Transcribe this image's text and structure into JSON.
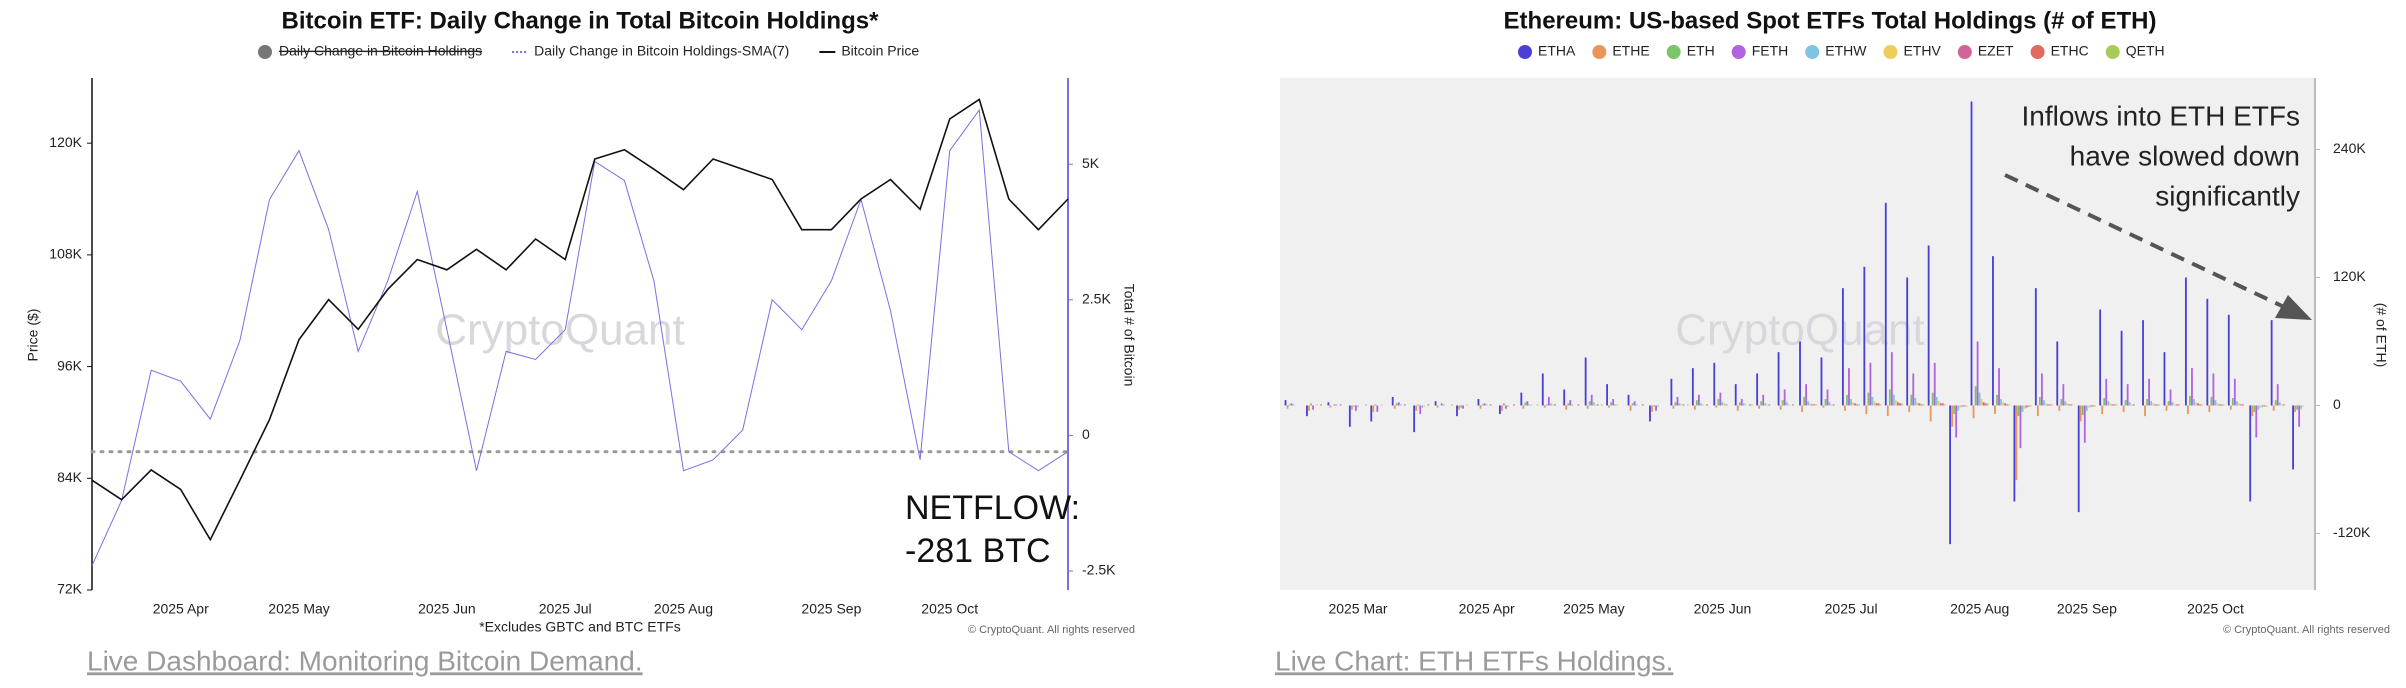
{
  "chart_data": [
    {
      "type": "line",
      "title": "Bitcoin ETF: Daily Change in Total Bitcoin Holdings*",
      "hidden_series": [
        {
          "name": "Daily Change in Bitcoin Holdings",
          "color": "#777777"
        }
      ],
      "categories": [
        null,
        null,
        null,
        "2025 Apr",
        null,
        null,
        null,
        "2025 May",
        null,
        null,
        null,
        null,
        "2025 Jun",
        null,
        null,
        null,
        "2025 Jul",
        null,
        null,
        null,
        "2025 Aug",
        null,
        null,
        null,
        null,
        "2025 Sep",
        null,
        null,
        null,
        "2025 Oct",
        null,
        null,
        null,
        null
      ],
      "series": [
        {
          "name": "Daily Change in Bitcoin Holdings-SMA(7)",
          "color": "#7b6fe0",
          "axis": "y2",
          "values": [
            -2400,
            -1200,
            1200,
            1000,
            300,
            1750,
            4350,
            5250,
            3800,
            1550,
            2850,
            4500,
            1950,
            -650,
            1550,
            1400,
            1950,
            5050,
            4700,
            2850,
            -650,
            -450,
            100,
            2500,
            1950,
            2850,
            4350,
            2300,
            -450,
            5250,
            6000,
            -300,
            -650,
            -300
          ]
        },
        {
          "name": "Bitcoin Price",
          "color": "#111111",
          "values": [
            83800,
            81700,
            84900,
            82800,
            77400,
            83800,
            90300,
            98900,
            103200,
            100000,
            104300,
            107500,
            106400,
            108600,
            106400,
            109700,
            107500,
            118300,
            119300,
            117200,
            115000,
            118300,
            117200,
            116100,
            110700,
            110700,
            114000,
            116100,
            112900,
            122600,
            124700,
            114000,
            110700,
            114000
          ]
        }
      ],
      "ylim": [
        72000,
        127000
      ],
      "yticks": [
        {
          "value": 72000,
          "label": "72K"
        },
        {
          "value": 84000,
          "label": "84K"
        },
        {
          "value": 96000,
          "label": "96K"
        },
        {
          "value": 108000,
          "label": "108K"
        },
        {
          "value": 120000,
          "label": "120K"
        }
      ],
      "y2lim": [
        -2850,
        6590
      ],
      "y2ticks": [
        {
          "value": -2500,
          "label": "-2.5K"
        },
        0,
        {
          "value": 2500,
          "label": "2.5K"
        },
        {
          "value": 5000,
          "label": "5K"
        }
      ],
      "ylabel": "Price ($)",
      "y2label": "Total # of Bitcoin",
      "reference_line_y2": -300,
      "annotations": [
        "NETFLOW:",
        "-281 BTC"
      ],
      "footnote": "*Excludes GBTC and BTC ETFs",
      "watermark": "CryptoQuant",
      "copyright": "© CryptoQuant. All rights reserved"
    },
    {
      "type": "bar",
      "title": "Ethereum: US-based Spot ETFs Total Holdings (# of ETH)",
      "categories": [
        null,
        null,
        null,
        "2025 Mar",
        null,
        null,
        null,
        null,
        null,
        "2025 Apr",
        null,
        null,
        null,
        null,
        "2025 May",
        null,
        null,
        null,
        null,
        null,
        "2025 Jun",
        null,
        null,
        null,
        null,
        null,
        "2025 Jul",
        null,
        null,
        null,
        null,
        null,
        "2025 Aug",
        null,
        null,
        null,
        null,
        "2025 Sep",
        null,
        null,
        null,
        null,
        null,
        "2025 Oct",
        null,
        null,
        null,
        null
      ],
      "series": [
        {
          "name": "ETHA",
          "color": "#4b3fd8",
          "values": [
            5000,
            -10000,
            3000,
            -20000,
            -15000,
            8000,
            -25000,
            4000,
            -10000,
            6000,
            -8000,
            12000,
            30000,
            15000,
            45000,
            20000,
            10000,
            -15000,
            25000,
            35000,
            40000,
            20000,
            30000,
            50000,
            60000,
            45000,
            110000,
            130000,
            190000,
            120000,
            150000,
            -130000,
            285000,
            140000,
            -90000,
            110000,
            60000,
            -100000,
            90000,
            70000,
            80000,
            50000,
            120000,
            100000,
            85000,
            -90000,
            80000,
            -60000
          ]
        },
        {
          "name": "ETHE",
          "color": "#e8965a",
          "values": [
            -3000,
            -5000,
            -2000,
            -4000,
            -6000,
            -3000,
            -5000,
            -2000,
            -4000,
            -3000,
            -5000,
            -3000,
            -2000,
            -4000,
            -3000,
            -2000,
            -5000,
            -6000,
            -3000,
            -4000,
            -2000,
            -5000,
            -3000,
            -4000,
            -6000,
            -2000,
            -5000,
            -8000,
            -10000,
            -6000,
            -15000,
            -20000,
            -12000,
            -8000,
            -70000,
            -10000,
            -5000,
            -15000,
            -8000,
            -6000,
            -10000,
            -5000,
            -8000,
            -6000,
            -4000,
            -10000,
            -5000,
            -6000
          ]
        },
        {
          "name": "ETH",
          "color": "#7cc46a",
          "values": [
            1000,
            2000,
            0,
            -1000,
            1000,
            2000,
            1000,
            0,
            -2000,
            1000,
            2000,
            3000,
            1000,
            2000,
            4000,
            3000,
            2000,
            -1000,
            3000,
            5000,
            6000,
            3000,
            4000,
            5000,
            8000,
            6000,
            10000,
            12000,
            15000,
            10000,
            12000,
            -8000,
            18000,
            10000,
            -10000,
            8000,
            6000,
            -9000,
            7000,
            5000,
            6000,
            4000,
            9000,
            8000,
            7000,
            -6000,
            5000,
            -4000
          ]
        },
        {
          "name": "FETH",
          "color": "#b463e0",
          "values": [
            2000,
            -4000,
            1000,
            -5000,
            -6000,
            3000,
            -8000,
            2000,
            -3000,
            2000,
            -3000,
            4000,
            8000,
            5000,
            10000,
            6000,
            4000,
            -5000,
            8000,
            10000,
            12000,
            6000,
            10000,
            15000,
            20000,
            15000,
            35000,
            40000,
            50000,
            30000,
            40000,
            -30000,
            60000,
            35000,
            -40000,
            30000,
            20000,
            -35000,
            25000,
            20000,
            25000,
            15000,
            35000,
            30000,
            25000,
            -30000,
            20000,
            -20000
          ]
        },
        {
          "name": "ETHW",
          "color": "#7fc4e0",
          "values": [
            1000,
            0,
            1000,
            -1000,
            0,
            1000,
            -2000,
            1000,
            0,
            1000,
            -1000,
            1000,
            2000,
            1000,
            3000,
            1000,
            1000,
            -1000,
            2000,
            2000,
            3000,
            2000,
            2000,
            3000,
            4000,
            3000,
            6000,
            8000,
            10000,
            7000,
            8000,
            -5000,
            12000,
            6000,
            -6000,
            5000,
            4000,
            -5000,
            4000,
            3000,
            4000,
            3000,
            6000,
            5000,
            4000,
            -4000,
            3000,
            -3000
          ]
        },
        {
          "name": "ETHV",
          "color": "#f0cc5a",
          "values": [
            0,
            1000,
            0,
            0,
            1000,
            0,
            -1000,
            0,
            1000,
            0,
            0,
            1000,
            1000,
            0,
            1000,
            1000,
            0,
            0,
            1000,
            1000,
            2000,
            1000,
            1000,
            1000,
            2000,
            1000,
            3000,
            4000,
            5000,
            3000,
            4000,
            -2000,
            6000,
            3000,
            -3000,
            2000,
            2000,
            -2000,
            2000,
            1000,
            2000,
            1000,
            3000,
            2000,
            2000,
            -2000,
            1000,
            -1000
          ]
        },
        {
          "name": "EZET",
          "color": "#d1649a",
          "values": [
            0,
            0,
            1000,
            0,
            0,
            1000,
            0,
            0,
            0,
            1000,
            0,
            0,
            1000,
            0,
            1000,
            0,
            0,
            0,
            1000,
            0,
            1000,
            0,
            1000,
            0,
            1000,
            1000,
            2000,
            2000,
            3000,
            2000,
            2000,
            -1000,
            3000,
            2000,
            -2000,
            1000,
            1000,
            -1000,
            1000,
            1000,
            1000,
            1000,
            2000,
            1000,
            1000,
            -1000,
            1000,
            0
          ]
        },
        {
          "name": "ETHC",
          "color": "#e06a5e",
          "values": [
            0,
            1000,
            0,
            0,
            0,
            0,
            1000,
            0,
            0,
            0,
            1000,
            0,
            0,
            1000,
            0,
            0,
            1000,
            0,
            0,
            1000,
            0,
            1000,
            0,
            1000,
            1000,
            0,
            1000,
            2000,
            2000,
            1000,
            2000,
            -1000,
            2000,
            1000,
            -1000,
            1000,
            1000,
            -1000,
            1000,
            0,
            1000,
            1000,
            1000,
            1000,
            1000,
            -1000,
            0,
            0
          ]
        },
        {
          "name": "QETH",
          "color": "#a8cc5a",
          "values": [
            0,
            0,
            0,
            1000,
            0,
            0,
            0,
            1000,
            0,
            0,
            0,
            1000,
            0,
            0,
            1000,
            0,
            0,
            0,
            1000,
            0,
            0,
            1000,
            0,
            0,
            1000,
            0,
            1000,
            1000,
            2000,
            1000,
            1000,
            -1000,
            2000,
            1000,
            -1000,
            1000,
            0,
            -1000,
            1000,
            0,
            1000,
            0,
            1000,
            1000,
            0,
            -1000,
            0,
            0
          ]
        }
      ],
      "ylim": [
        -173000,
        307000
      ],
      "yticks": [
        {
          "value": -120000,
          "label": "-120K"
        },
        0,
        {
          "value": 120000,
          "label": "120K"
        },
        {
          "value": 240000,
          "label": "240K"
        }
      ],
      "yaxis_side": "right",
      "ylabel": "(# of ETH)",
      "annotations": [
        "Inflows into ETH ETFs",
        "have slowed down",
        "significantly"
      ],
      "watermark": "CryptoQuant",
      "copyright": "© CryptoQuant. All rights reserved"
    }
  ],
  "links": [
    "Live Dashboard: Monitoring Bitcoin Demand.",
    "Live Chart: ETH ETFs Holdings."
  ]
}
